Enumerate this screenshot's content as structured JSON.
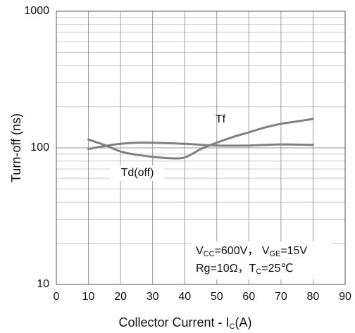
{
  "chart_data": {
    "type": "line",
    "y_label": "Turn-off  (ns)",
    "x_label": [
      "Collector Current  - I",
      "C",
      "(A)"
    ],
    "xlim": [
      0,
      90
    ],
    "xticks": [
      0,
      10,
      20,
      30,
      40,
      50,
      60,
      70,
      80,
      90
    ],
    "ylim": [
      10,
      1000
    ],
    "yticks": [
      10,
      100,
      1000
    ],
    "log_y": true,
    "grid": true,
    "y_minor_ticks": [
      20,
      30,
      40,
      50,
      60,
      70,
      80,
      90,
      200,
      300,
      400,
      500,
      600,
      700,
      800,
      900
    ],
    "series": [
      {
        "name": "Tf",
        "color": "#808080",
        "x": [
          10,
          15,
          20,
          25,
          30,
          35,
          40,
          45,
          50,
          55,
          60,
          65,
          70,
          75,
          80
        ],
        "values": [
          115,
          105,
          94,
          89,
          86,
          84,
          85,
          98,
          109,
          120,
          130,
          141,
          150,
          156,
          163
        ]
      },
      {
        "name": "Td(off)",
        "color": "#808080",
        "x": [
          10,
          15,
          20,
          25,
          30,
          40,
          50,
          60,
          70,
          80
        ],
        "values": [
          98,
          103,
          107,
          109,
          109,
          107,
          104,
          104,
          106,
          105
        ]
      }
    ],
    "annotation": [
      [
        "V",
        "CC",
        "=600V，  V",
        "GE",
        "=15V"
      ],
      [
        "Rg=10Ω，T",
        "C",
        "=25℃"
      ]
    ]
  }
}
